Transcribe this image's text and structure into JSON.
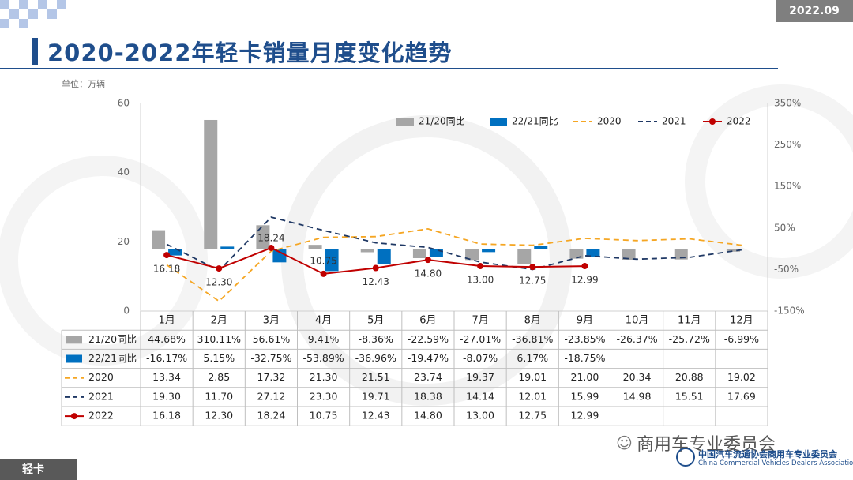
{
  "header": {
    "date": "2022.09",
    "title": "2020-2022年轻卡销量月度变化趋势",
    "unit": "单位：万辆"
  },
  "footer": {
    "section": "轻卡",
    "wechat": "商用车专业委员会",
    "assoc_cn": "中国汽车流通协会商用车专业委员会",
    "assoc_en": "China Commercial Vehicles Dealers Association"
  },
  "colors": {
    "yoy_21_20": "#a6a6a6",
    "yoy_22_21": "#0070c0",
    "s2020": "#f5a623",
    "s2021": "#1f3864",
    "s2022": "#c00000",
    "title": "#1f4e8c"
  },
  "chart_data": {
    "type": "bar",
    "categories": [
      "1月",
      "2月",
      "3月",
      "4月",
      "5月",
      "6月",
      "7月",
      "8月",
      "9月",
      "10月",
      "11月",
      "12月"
    ],
    "left_axis": {
      "min": 0,
      "max": 60,
      "ticks": [
        "0",
        "20",
        "40",
        "60"
      ]
    },
    "right_axis": {
      "min": -150,
      "max": 350,
      "ticks": [
        "-150%",
        "-50%",
        "50%",
        "150%",
        "250%",
        "350%"
      ]
    },
    "series": [
      {
        "name": "21/20同比",
        "kind": "bar",
        "axis": "right",
        "values": [
          44.68,
          310.11,
          56.61,
          9.41,
          -8.36,
          -22.59,
          -27.01,
          -36.81,
          -23.85,
          -26.37,
          -25.72,
          -6.99
        ],
        "labels": [
          "44.68%",
          "310.11%",
          "56.61%",
          "9.41%",
          "-8.36%",
          "-22.59%",
          "-27.01%",
          "-36.81%",
          "-23.85%",
          "-26.37%",
          "-25.72%",
          "-6.99%"
        ]
      },
      {
        "name": "22/21同比",
        "kind": "bar",
        "axis": "right",
        "values": [
          -16.17,
          5.15,
          -32.75,
          -53.89,
          -36.96,
          -19.47,
          -8.07,
          6.17,
          -18.75,
          null,
          null,
          null
        ],
        "labels": [
          "-16.17%",
          "5.15%",
          "-32.75%",
          "-53.89%",
          "-36.96%",
          "-19.47%",
          "-8.07%",
          "6.17%",
          "-18.75%",
          "",
          "",
          ""
        ]
      },
      {
        "name": "2020",
        "kind": "line",
        "style": "dashed",
        "axis": "left",
        "values": [
          13.34,
          2.85,
          17.32,
          21.3,
          21.51,
          23.74,
          19.37,
          19.01,
          21.0,
          20.34,
          20.88,
          19.02
        ],
        "labels": [
          "13.34",
          "2.85",
          "17.32",
          "21.30",
          "21.51",
          "23.74",
          "19.37",
          "19.01",
          "21.00",
          "20.34",
          "20.88",
          "19.02"
        ]
      },
      {
        "name": "2021",
        "kind": "line",
        "style": "dashed",
        "axis": "left",
        "values": [
          19.3,
          11.7,
          27.12,
          23.3,
          19.71,
          18.38,
          14.14,
          12.01,
          15.99,
          14.98,
          15.51,
          17.69
        ],
        "labels": [
          "19.30",
          "11.70",
          "27.12",
          "23.30",
          "19.71",
          "18.38",
          "14.14",
          "12.01",
          "15.99",
          "14.98",
          "15.51",
          "17.69"
        ]
      },
      {
        "name": "2022",
        "kind": "line",
        "style": "solid-marker",
        "axis": "left",
        "values": [
          16.18,
          12.3,
          18.24,
          10.75,
          12.43,
          14.8,
          13.0,
          12.75,
          12.99,
          null,
          null,
          null
        ],
        "labels": [
          "16.18",
          "12.30",
          "18.24",
          "10.75",
          "12.43",
          "14.80",
          "13.00",
          "12.75",
          "12.99",
          "",
          "",
          ""
        ]
      }
    ],
    "legend_position": "top-right",
    "grid": false
  }
}
